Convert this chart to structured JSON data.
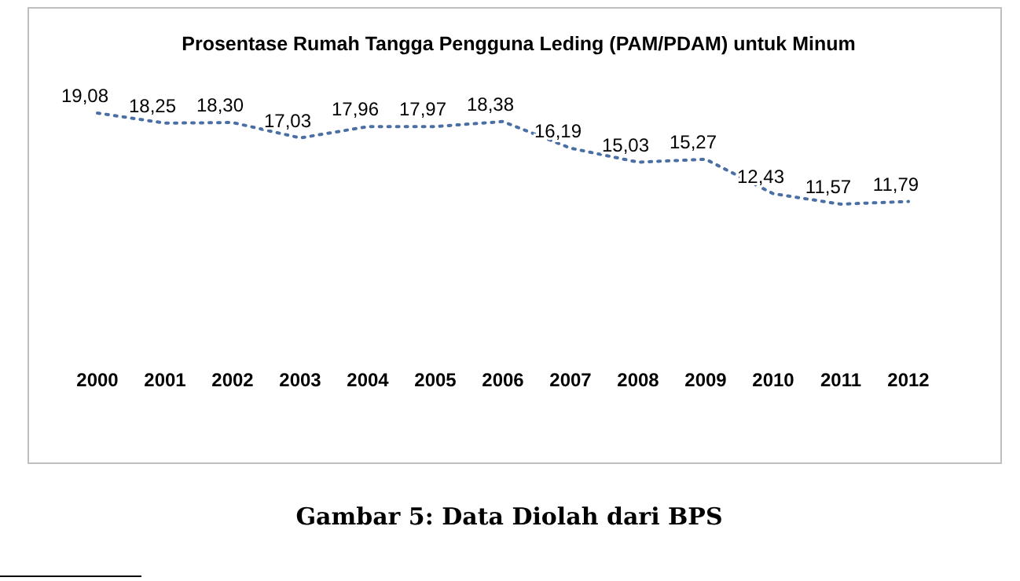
{
  "chart_data": {
    "type": "line",
    "title": "Prosentase Rumah Tangga Pengguna Leding (PAM/PDAM) untuk Minum",
    "categories": [
      "2000",
      "2001",
      "2002",
      "2003",
      "2004",
      "2005",
      "2006",
      "2007",
      "2008",
      "2009",
      "2010",
      "2011",
      "2012"
    ],
    "series": [
      {
        "color": "#4a6fa5",
        "values": [
          19.08,
          18.25,
          18.3,
          17.03,
          17.96,
          17.97,
          18.38,
          16.19,
          15.03,
          15.27,
          12.43,
          11.57,
          11.79
        ],
        "value_labels": [
          "19,08",
          "18,25",
          "18,30",
          "17,03",
          "17,96",
          "17,97",
          "18,38",
          "16,19",
          "15,03",
          "15,27",
          "12,43",
          "11,57",
          "11,79"
        ]
      }
    ],
    "line_style": "dotted",
    "grid": false,
    "tick_labels": "x",
    "annotations": [
      "Gambar 5: Data Diolah dari BPS"
    ]
  }
}
